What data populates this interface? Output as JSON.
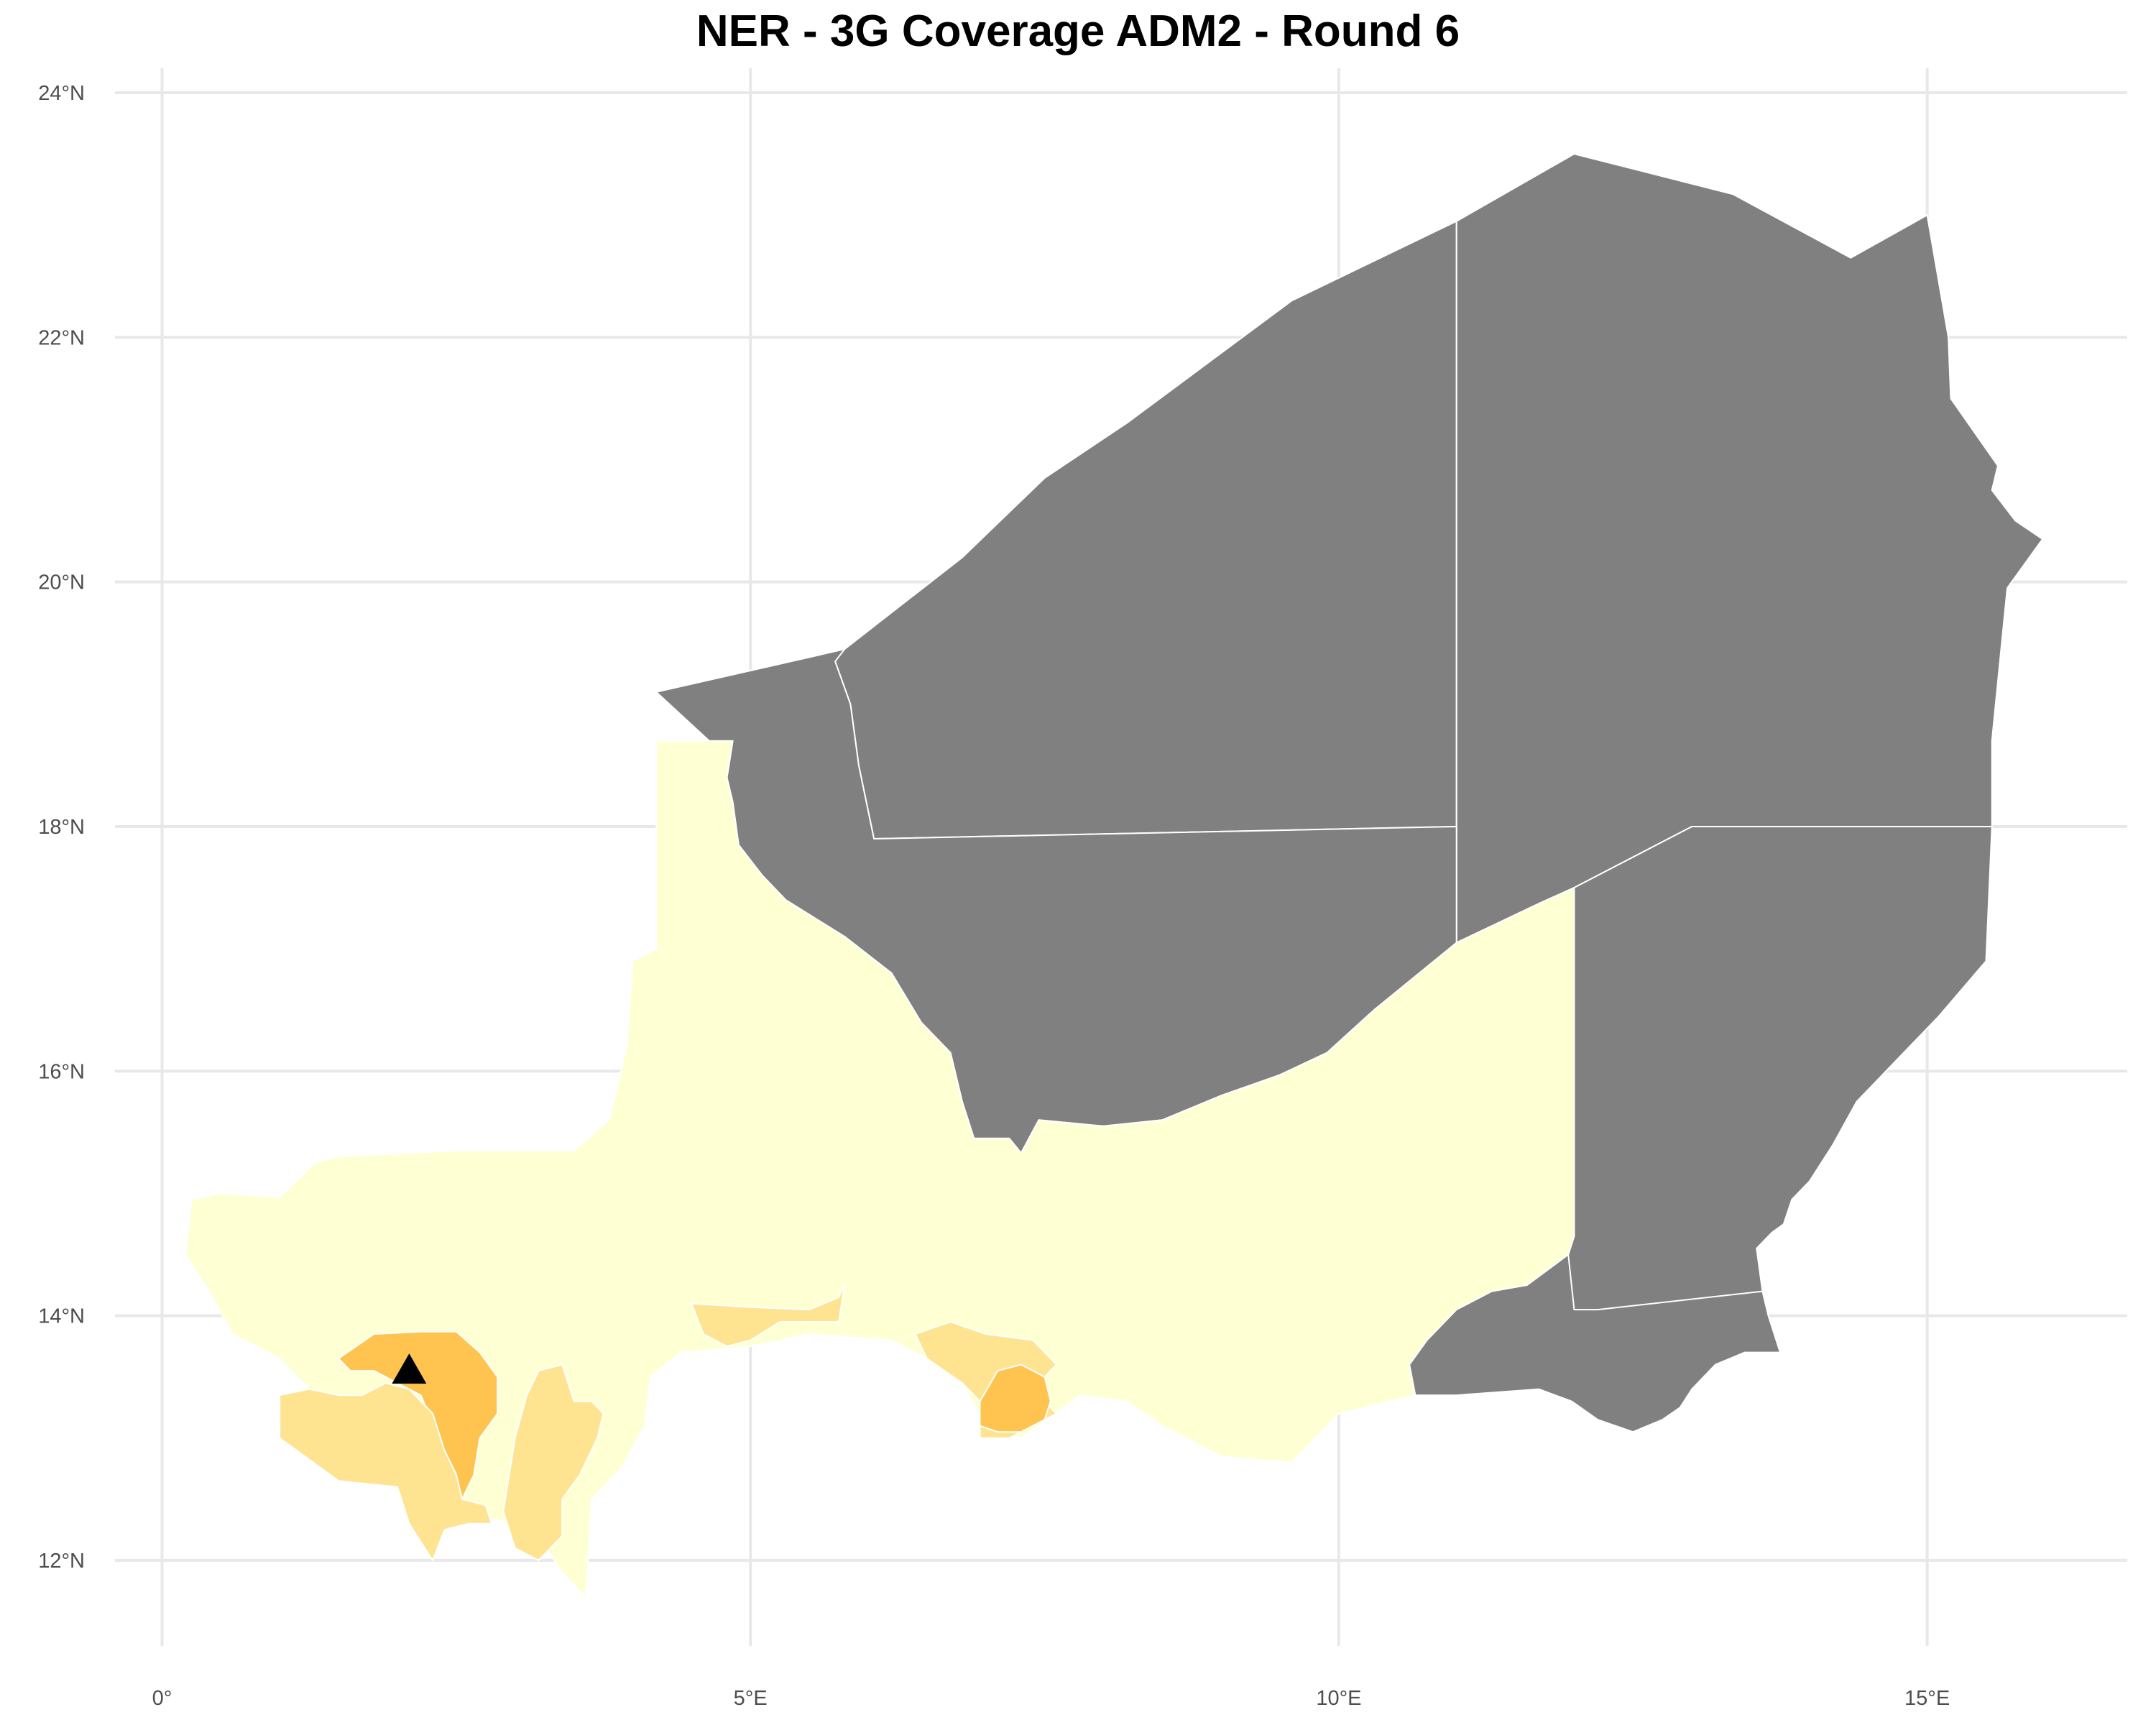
{
  "title": "NER - 3G Coverage ADM2 - Round 6",
  "axes": {
    "x_ticks": [
      {
        "value": 0,
        "label": "0°"
      },
      {
        "value": 5,
        "label": "5°E"
      },
      {
        "value": 10,
        "label": "10°E"
      },
      {
        "value": 15,
        "label": "15°E"
      }
    ],
    "y_ticks": [
      {
        "value": 12,
        "label": "12°N"
      },
      {
        "value": 14,
        "label": "14°N"
      },
      {
        "value": 16,
        "label": "16°N"
      },
      {
        "value": 18,
        "label": "18°N"
      },
      {
        "value": 20,
        "label": "20°N"
      },
      {
        "value": 22,
        "label": "22°N"
      },
      {
        "value": 24,
        "label": "24°N"
      }
    ],
    "x_range": [
      -0.4,
      16.7
    ],
    "y_range": [
      11.3,
      24.2
    ],
    "grid": true
  },
  "colors": {
    "no_data": "#808080",
    "coverage_low": "#ffffd4",
    "coverage_medium": "#fee391",
    "coverage_high": "#fec44f",
    "marker": "#000000",
    "background": "#ffffff",
    "grid": "#e8e8e8"
  },
  "marker": {
    "shape": "triangle",
    "location": [
      2.1,
      13.55
    ]
  },
  "regions": [
    {
      "id": "north-west",
      "fill": "no_data",
      "coords": [
        [
          4.2,
          19.1
        ],
        [
          5.8,
          19.45
        ],
        [
          6.8,
          20.2
        ],
        [
          7.5,
          20.85
        ],
        [
          8.2,
          21.3
        ],
        [
          9.6,
          22.3
        ],
        [
          11.0,
          22.95
        ],
        [
          11.0,
          18.0
        ],
        [
          6.05,
          17.9
        ],
        [
          5.92,
          18.5
        ],
        [
          5.85,
          19.0
        ],
        [
          5.72,
          19.35
        ],
        [
          5.78,
          19.45
        ],
        [
          5.8,
          19.45
        ]
      ]
    },
    {
      "id": "north-east",
      "fill": "no_data",
      "coords": [
        [
          11.0,
          22.95
        ],
        [
          12.0,
          23.5
        ],
        [
          13.35,
          23.17
        ],
        [
          14.35,
          22.65
        ],
        [
          15.0,
          23.0
        ],
        [
          15.18,
          22.0
        ],
        [
          15.2,
          21.5
        ],
        [
          15.6,
          20.95
        ],
        [
          15.55,
          20.75
        ],
        [
          15.75,
          20.5
        ],
        [
          15.98,
          20.35
        ],
        [
          15.68,
          19.95
        ],
        [
          15.55,
          18.7
        ],
        [
          15.55,
          18.0
        ],
        [
          13.0,
          18.0
        ],
        [
          12.0,
          17.5
        ],
        [
          11.7,
          17.37
        ],
        [
          11.0,
          17.05
        ]
      ]
    },
    {
      "id": "central-north",
      "fill": "no_data",
      "coords": [
        [
          4.65,
          18.7
        ],
        [
          4.85,
          18.7
        ],
        [
          4.8,
          18.4
        ],
        [
          4.85,
          18.2
        ],
        [
          4.9,
          17.85
        ],
        [
          5.1,
          17.6
        ],
        [
          5.3,
          17.4
        ],
        [
          5.8,
          17.1
        ],
        [
          6.2,
          16.8
        ],
        [
          6.45,
          16.4
        ],
        [
          6.6,
          16.25
        ],
        [
          6.7,
          16.15
        ],
        [
          6.8,
          15.75
        ],
        [
          6.9,
          15.45
        ],
        [
          7.2,
          15.45
        ],
        [
          7.3,
          15.33
        ],
        [
          7.45,
          15.6
        ],
        [
          8.0,
          15.55
        ],
        [
          8.5,
          15.6
        ],
        [
          9.0,
          15.8
        ],
        [
          9.5,
          15.97
        ],
        [
          9.9,
          16.15
        ],
        [
          10.3,
          16.5
        ],
        [
          11.0,
          17.05
        ],
        [
          11.0,
          18.0
        ],
        [
          6.05,
          17.9
        ],
        [
          5.92,
          18.5
        ],
        [
          5.85,
          19.0
        ],
        [
          5.72,
          19.35
        ],
        [
          5.8,
          19.45
        ],
        [
          4.2,
          19.1
        ]
      ]
    },
    {
      "id": "east-diffa",
      "fill": "no_data",
      "coords": [
        [
          12.0,
          17.5
        ],
        [
          13.0,
          18.0
        ],
        [
          15.55,
          18.0
        ],
        [
          15.5,
          16.9
        ],
        [
          15.1,
          16.45
        ],
        [
          14.4,
          15.75
        ],
        [
          14.2,
          15.4
        ],
        [
          14.0,
          15.1
        ],
        [
          13.85,
          14.95
        ],
        [
          13.78,
          14.75
        ],
        [
          13.68,
          14.68
        ],
        [
          13.55,
          14.55
        ],
        [
          13.6,
          14.2
        ],
        [
          13.65,
          14.0
        ],
        [
          13.75,
          13.7
        ],
        [
          13.45,
          13.7
        ],
        [
          13.2,
          13.6
        ],
        [
          13.0,
          13.4
        ],
        [
          12.9,
          13.25
        ],
        [
          12.75,
          13.15
        ],
        [
          12.5,
          13.05
        ],
        [
          12.35,
          13.1
        ],
        [
          12.2,
          13.15
        ],
        [
          11.98,
          13.3
        ],
        [
          11.7,
          13.4
        ],
        [
          11.0,
          13.35
        ],
        [
          10.65,
          13.35
        ],
        [
          10.6,
          13.6
        ],
        [
          10.75,
          13.8
        ],
        [
          11.0,
          14.05
        ],
        [
          11.3,
          14.2
        ],
        [
          11.6,
          14.25
        ],
        [
          11.95,
          14.5
        ],
        [
          12.0,
          14.65
        ]
      ]
    },
    {
      "id": "south-zinder-east",
      "fill": "coverage_low",
      "coords": [
        [
          12.0,
          17.5
        ],
        [
          11.7,
          17.37
        ],
        [
          11.0,
          17.05
        ],
        [
          10.3,
          16.5
        ],
        [
          9.9,
          16.15
        ],
        [
          9.5,
          15.97
        ],
        [
          9.0,
          15.8
        ],
        [
          8.5,
          15.6
        ],
        [
          8.0,
          15.55
        ],
        [
          7.45,
          15.6
        ],
        [
          7.3,
          15.33
        ],
        [
          7.2,
          15.45
        ],
        [
          6.9,
          15.45
        ],
        [
          6.8,
          15.75
        ],
        [
          6.7,
          16.15
        ],
        [
          6.6,
          16.25
        ],
        [
          6.45,
          16.4
        ],
        [
          6.2,
          16.8
        ],
        [
          5.8,
          17.1
        ],
        [
          5.3,
          17.4
        ],
        [
          5.1,
          17.6
        ],
        [
          4.9,
          17.85
        ],
        [
          4.85,
          18.2
        ],
        [
          4.8,
          18.4
        ],
        [
          4.85,
          18.7
        ],
        [
          4.2,
          18.7
        ],
        [
          4.2,
          17.0
        ],
        [
          4.0,
          16.9
        ],
        [
          3.95,
          16.2
        ],
        [
          3.8,
          15.6
        ],
        [
          3.5,
          15.35
        ],
        [
          2.5,
          15.35
        ],
        [
          1.5,
          15.3
        ],
        [
          1.3,
          15.25
        ],
        [
          1.0,
          14.97
        ],
        [
          0.5,
          15.0
        ],
        [
          0.25,
          14.95
        ],
        [
          0.2,
          14.5
        ],
        [
          0.4,
          14.2
        ],
        [
          0.6,
          13.85
        ],
        [
          1.0,
          13.65
        ],
        [
          1.25,
          13.4
        ],
        [
          1.0,
          13.35
        ],
        [
          1.0,
          13.0
        ],
        [
          1.5,
          12.65
        ],
        [
          2.0,
          12.6
        ],
        [
          2.1,
          12.3
        ],
        [
          2.3,
          12.0
        ],
        [
          2.4,
          12.25
        ],
        [
          2.7,
          12.35
        ],
        [
          3.0,
          12.3
        ],
        [
          3.2,
          12.2
        ],
        [
          3.4,
          11.9
        ],
        [
          3.6,
          11.7
        ],
        [
          3.65,
          12.5
        ],
        [
          3.9,
          12.75
        ],
        [
          4.1,
          13.1
        ],
        [
          4.15,
          13.5
        ],
        [
          4.4,
          13.7
        ],
        [
          5.0,
          13.75
        ],
        [
          5.5,
          13.85
        ],
        [
          6.2,
          13.8
        ],
        [
          6.5,
          13.65
        ],
        [
          6.8,
          13.45
        ],
        [
          7.0,
          13.1
        ],
        [
          7.3,
          13.0
        ],
        [
          7.8,
          13.35
        ],
        [
          8.2,
          13.3
        ],
        [
          8.5,
          13.1
        ],
        [
          9.0,
          12.85
        ],
        [
          9.6,
          12.8
        ],
        [
          10.0,
          13.2
        ],
        [
          10.65,
          13.35
        ],
        [
          10.6,
          13.6
        ],
        [
          10.75,
          13.8
        ],
        [
          11.0,
          14.05
        ],
        [
          11.3,
          14.2
        ],
        [
          11.6,
          14.25
        ],
        [
          11.95,
          14.5
        ],
        [
          12.0,
          14.65
        ]
      ]
    },
    {
      "id": "diffa-south-west",
      "fill": "no_data",
      "coords": [
        [
          11.95,
          14.5
        ],
        [
          11.6,
          14.25
        ],
        [
          11.3,
          14.2
        ],
        [
          11.0,
          14.05
        ],
        [
          10.75,
          13.8
        ],
        [
          10.6,
          13.6
        ],
        [
          10.65,
          13.35
        ],
        [
          11.0,
          13.35
        ],
        [
          11.7,
          13.4
        ],
        [
          11.98,
          13.3
        ],
        [
          12.2,
          13.15
        ],
        [
          12.35,
          13.1
        ],
        [
          12.5,
          13.05
        ],
        [
          12.75,
          13.15
        ],
        [
          12.9,
          13.25
        ],
        [
          13.0,
          13.4
        ],
        [
          13.2,
          13.6
        ],
        [
          13.45,
          13.7
        ],
        [
          13.75,
          13.7
        ],
        [
          13.65,
          14.0
        ],
        [
          13.6,
          14.2
        ],
        [
          12.2,
          14.05
        ],
        [
          12.0,
          14.05
        ]
      ]
    },
    {
      "id": "tahoua-coverage-medium",
      "fill": "coverage_medium",
      "coords": [
        [
          4.5,
          14.1
        ],
        [
          5.0,
          14.07
        ],
        [
          5.5,
          14.05
        ],
        [
          5.75,
          14.15
        ],
        [
          5.8,
          14.25
        ],
        [
          5.75,
          13.95
        ],
        [
          5.25,
          13.95
        ],
        [
          5.0,
          13.8
        ],
        [
          4.8,
          13.75
        ],
        [
          4.6,
          13.85
        ]
      ]
    },
    {
      "id": "maradi-coverage-medium",
      "fill": "coverage_medium",
      "coords": [
        [
          6.4,
          13.85
        ],
        [
          6.7,
          13.95
        ],
        [
          7.0,
          13.85
        ],
        [
          7.4,
          13.8
        ],
        [
          7.6,
          13.6
        ],
        [
          7.4,
          13.4
        ],
        [
          7.6,
          13.2
        ],
        [
          7.4,
          13.1
        ],
        [
          7.2,
          13.0
        ],
        [
          6.95,
          13.0
        ],
        [
          6.95,
          13.3
        ],
        [
          6.8,
          13.45
        ],
        [
          6.5,
          13.65
        ]
      ]
    },
    {
      "id": "maradi-coverage-high",
      "fill": "coverage_high",
      "coords": [
        [
          6.95,
          13.3
        ],
        [
          7.1,
          13.55
        ],
        [
          7.3,
          13.6
        ],
        [
          7.5,
          13.5
        ],
        [
          7.55,
          13.3
        ],
        [
          7.5,
          13.15
        ],
        [
          7.3,
          13.05
        ],
        [
          7.1,
          13.05
        ],
        [
          6.95,
          13.1
        ]
      ]
    },
    {
      "id": "niamey-coverage-high",
      "fill": "coverage_high",
      "coords": [
        [
          1.5,
          13.65
        ],
        [
          1.8,
          13.85
        ],
        [
          2.2,
          13.87
        ],
        [
          2.5,
          13.87
        ],
        [
          2.7,
          13.7
        ],
        [
          2.85,
          13.5
        ],
        [
          2.85,
          13.2
        ],
        [
          2.7,
          13.0
        ],
        [
          2.65,
          12.7
        ],
        [
          2.55,
          12.5
        ],
        [
          2.5,
          12.7
        ],
        [
          2.35,
          13.0
        ],
        [
          2.2,
          13.35
        ],
        [
          2.0,
          13.45
        ],
        [
          1.8,
          13.55
        ],
        [
          1.6,
          13.55
        ]
      ]
    },
    {
      "id": "tillaberi-south-medium",
      "fill": "coverage_medium",
      "coords": [
        [
          1.0,
          13.35
        ],
        [
          1.25,
          13.4
        ],
        [
          1.5,
          13.35
        ],
        [
          1.7,
          13.35
        ],
        [
          1.9,
          13.45
        ],
        [
          2.1,
          13.4
        ],
        [
          2.3,
          13.2
        ],
        [
          2.4,
          12.9
        ],
        [
          2.5,
          12.7
        ],
        [
          2.55,
          12.5
        ],
        [
          2.75,
          12.45
        ],
        [
          2.8,
          12.3
        ],
        [
          2.6,
          12.3
        ],
        [
          2.4,
          12.25
        ],
        [
          2.3,
          12.0
        ],
        [
          2.1,
          12.3
        ],
        [
          2.0,
          12.6
        ],
        [
          1.5,
          12.65
        ],
        [
          1.0,
          13.0
        ]
      ]
    },
    {
      "id": "dosso-coverage-medium",
      "fill": "coverage_medium",
      "coords": [
        [
          3.0,
          13.0
        ],
        [
          3.1,
          13.35
        ],
        [
          3.2,
          13.55
        ],
        [
          3.4,
          13.6
        ],
        [
          3.5,
          13.3
        ],
        [
          3.65,
          13.3
        ],
        [
          3.75,
          13.2
        ],
        [
          3.7,
          13.0
        ],
        [
          3.55,
          12.7
        ],
        [
          3.4,
          12.5
        ],
        [
          3.4,
          12.2
        ],
        [
          3.2,
          12.0
        ],
        [
          3.0,
          12.1
        ],
        [
          2.9,
          12.4
        ]
      ]
    }
  ]
}
